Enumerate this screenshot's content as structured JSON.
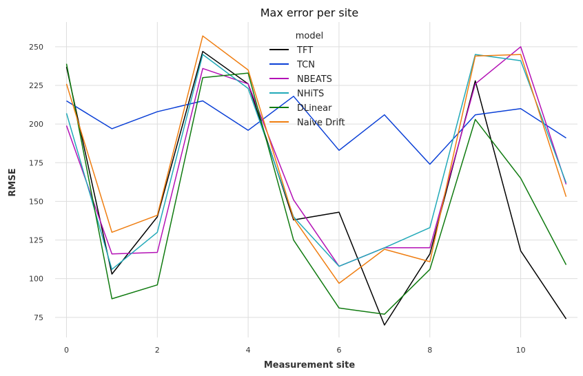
{
  "chart_data": {
    "type": "line",
    "title": "Max error per site",
    "xlabel": "Measurement site",
    "ylabel": "RMSE",
    "x": [
      0,
      1,
      2,
      3,
      4,
      5,
      6,
      7,
      8,
      9,
      10,
      11
    ],
    "xlim": [
      -0.25,
      11.25
    ],
    "ylim": [
      62,
      266
    ],
    "xticks": [
      0,
      2,
      4,
      6,
      8,
      10
    ],
    "yticks": [
      75,
      100,
      125,
      150,
      175,
      200,
      225,
      250
    ],
    "grid": true,
    "legend": {
      "title": "model",
      "placement": "top-center"
    },
    "series": [
      {
        "name": "TFT",
        "color": "#000000",
        "values": [
          237,
          103,
          140,
          247,
          226,
          138,
          143,
          70,
          116,
          228,
          118,
          74
        ]
      },
      {
        "name": "TCN",
        "color": "#0a3fd6",
        "values": [
          215,
          197,
          208,
          215,
          196,
          218,
          183,
          206,
          174,
          206,
          210,
          191
        ]
      },
      {
        "name": "NBEATS",
        "color": "#b310b5",
        "values": [
          199,
          116,
          117,
          236,
          226,
          151,
          108,
          120,
          120,
          226,
          250,
          161
        ]
      },
      {
        "name": "NHiTS",
        "color": "#21a9b8",
        "values": [
          207,
          106,
          130,
          245,
          223,
          140,
          108,
          120,
          133,
          245,
          241,
          162
        ]
      },
      {
        "name": "DLinear",
        "color": "#0f7a0f",
        "values": [
          239,
          87,
          96,
          230,
          233,
          125,
          81,
          77,
          106,
          203,
          165,
          109
        ]
      },
      {
        "name": "Naive Drift",
        "color": "#ef7d10",
        "values": [
          226,
          130,
          141,
          257,
          235,
          139,
          97,
          119,
          111,
          244,
          245,
          153
        ]
      }
    ]
  }
}
